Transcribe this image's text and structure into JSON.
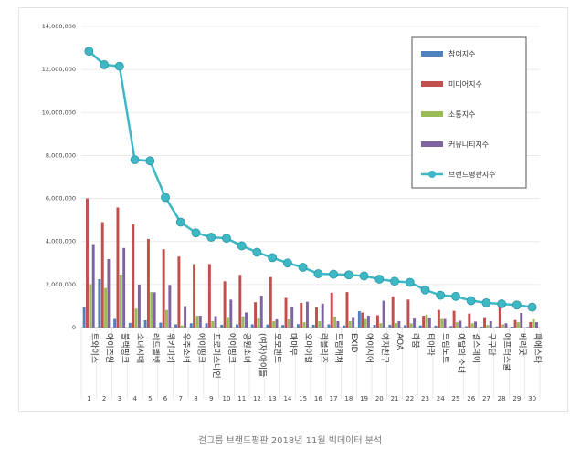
{
  "caption": "걸그룹 브랜드평판 2018년 11월 빅데이터 분석",
  "chart_data": {
    "type": "bar",
    "title": "",
    "xlabel": "",
    "ylabel": "",
    "ylim": [
      0,
      14000000
    ],
    "yticks": [
      "14,000,000",
      "12,000,000",
      "10,000,000",
      "8,000,000",
      "6,000,000",
      "4,000,000",
      "2,000,000",
      "0"
    ],
    "grid": true,
    "legend_position": "top-right",
    "categories": [
      "트와이스",
      "아이즈원",
      "블랙핑크",
      "소녀시대",
      "레드벨벳",
      "위키미키",
      "우주소녀",
      "에이핑크",
      "프로미스나인",
      "에이핑크",
      "공원소녀",
      "(여자)아이들",
      "모모랜드",
      "마마무",
      "오마이걸",
      "러블리즈",
      "드림캐쳐",
      "EXID",
      "아이시어",
      "여자친구",
      "AOA",
      "라붐",
      "티아라",
      "드림노트",
      "이달의 소녀",
      "걸스데이",
      "구구단",
      "애프터스쿨",
      "베리굿",
      "피에스타"
    ],
    "ranks": [
      "1",
      "2",
      "3",
      "4",
      "5",
      "6",
      "7",
      "8",
      "9",
      "10",
      "11",
      "12",
      "13",
      "14",
      "15",
      "16",
      "17",
      "18",
      "19",
      "20",
      "21",
      "22",
      "23",
      "24",
      "25",
      "26",
      "27",
      "28",
      "29",
      "30"
    ],
    "series": [
      {
        "name": "참여지수",
        "color": "#4f81bd",
        "kind": "bar",
        "values": [
          950000,
          2250000,
          400000,
          220000,
          340000,
          230000,
          150000,
          200000,
          200000,
          130000,
          150000,
          150000,
          140000,
          120000,
          160000,
          130000,
          150000,
          100000,
          760000,
          130000,
          130000,
          110000,
          100000,
          90000,
          70000,
          60000,
          40000,
          50000,
          40000,
          30000
        ]
      },
      {
        "name": "미디어지수",
        "color": "#c0504d",
        "kind": "bar",
        "values": [
          6000000,
          4900000,
          5580000,
          4800000,
          4120000,
          3640000,
          3300000,
          2950000,
          2950000,
          2150000,
          2450000,
          1180000,
          2350000,
          1380000,
          1150000,
          940000,
          1620000,
          1650000,
          700000,
          570000,
          1450000,
          1300000,
          550000,
          820000,
          780000,
          650000,
          440000,
          1000000,
          350000,
          260000
        ]
      },
      {
        "name": "소통지수",
        "color": "#9bbb59",
        "kind": "bar",
        "values": [
          2020000,
          1840000,
          2460000,
          880000,
          1650000,
          820000,
          100000,
          550000,
          300000,
          450000,
          520000,
          420000,
          300000,
          380000,
          250000,
          300000,
          500000,
          300000,
          400000,
          200000,
          210000,
          200000,
          600000,
          400000,
          250000,
          200000,
          120000,
          150000,
          250000,
          380000
        ]
      },
      {
        "name": "커뮤니티지수",
        "color": "#8064a2",
        "kind": "bar",
        "values": [
          3880000,
          3180000,
          3700000,
          2000000,
          1640000,
          1980000,
          1000000,
          550000,
          530000,
          1300000,
          700000,
          1480000,
          380000,
          980000,
          1200000,
          1110000,
          300000,
          450000,
          550000,
          1250000,
          300000,
          420000,
          430000,
          400000,
          320000,
          280000,
          300000,
          200000,
          680000,
          250000
        ]
      },
      {
        "name": "브랜드평판지수",
        "color": "#3fb8c6",
        "kind": "line",
        "values": [
          12850000,
          12220000,
          12150000,
          7800000,
          7750000,
          6050000,
          4900000,
          4400000,
          4200000,
          4150000,
          3800000,
          3500000,
          3250000,
          3000000,
          2800000,
          2500000,
          2480000,
          2450000,
          2400000,
          2250000,
          2150000,
          2100000,
          1750000,
          1500000,
          1450000,
          1250000,
          1150000,
          1100000,
          1050000,
          950000
        ]
      }
    ]
  }
}
